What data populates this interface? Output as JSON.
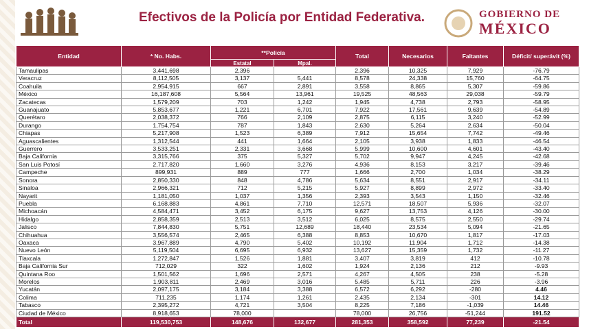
{
  "header": {
    "title": "Efectivos de la Policía por Entidad Federativa.",
    "logo_line1": "GOBIERNO DE",
    "logo_line2": "MÉXICO"
  },
  "table": {
    "columns": [
      "Entidad",
      "* No. Habs.",
      "**Policía",
      "Total",
      "Necesarios",
      "Faltantes",
      "Déficit/ superávit (%)"
    ],
    "subcolumns": [
      "Estatal",
      "Mpal."
    ],
    "rows": [
      [
        "Tamaulipas",
        "3,441,698",
        "2,396",
        null,
        "2,396",
        "10,325",
        "7,929",
        "-76.79"
      ],
      [
        "Veracruz",
        "8,112,505",
        "3,137",
        "5,441",
        "8,578",
        "24,338",
        "15,760",
        "-64.75"
      ],
      [
        "Coahuila",
        "2,954,915",
        "667",
        "2,891",
        "3,558",
        "8,865",
        "5,307",
        "-59.86"
      ],
      [
        "México",
        "16,187,608",
        "5,564",
        "13,961",
        "19,525",
        "48,563",
        "29,038",
        "-59.79"
      ],
      [
        "Zacatecas",
        "1,579,209",
        "703",
        "1,242",
        "1,945",
        "4,738",
        "2,793",
        "-58.95"
      ],
      [
        "Guanajuato",
        "5,853,677",
        "1,221",
        "6,701",
        "7,922",
        "17,561",
        "9,639",
        "-54.89"
      ],
      [
        "Querétaro",
        "2,038,372",
        "766",
        "2,109",
        "2,875",
        "6,115",
        "3,240",
        "-52.99"
      ],
      [
        "Durango",
        "1,754,754",
        "787",
        "1,843",
        "2,630",
        "5,264",
        "2,634",
        "-50.04"
      ],
      [
        "Chiapas",
        "5,217,908",
        "1,523",
        "6,389",
        "7,912",
        "15,654",
        "7,742",
        "-49.46"
      ],
      [
        "Aguascalientes",
        "1,312,544",
        "441",
        "1,664",
        "2,105",
        "3,938",
        "1,833",
        "-46.54"
      ],
      [
        "Guerrero",
        "3,533,251",
        "2,331",
        "3,668",
        "5,999",
        "10,600",
        "4,601",
        "-43.40"
      ],
      [
        "Baja California",
        "3,315,766",
        "375",
        "5,327",
        "5,702",
        "9,947",
        "4,245",
        "-42.68"
      ],
      [
        "San Luis Potosí",
        "2,717,820",
        "1,660",
        "3,276",
        "4,936",
        "8,153",
        "3,217",
        "-39.46"
      ],
      [
        "Campeche",
        "899,931",
        "889",
        "777",
        "1,666",
        "2,700",
        "1,034",
        "-38.29"
      ],
      [
        "Sonora",
        "2,850,330",
        "848",
        "4,786",
        "5,634",
        "8,551",
        "2,917",
        "-34.11"
      ],
      [
        "Sinaloa",
        "2,966,321",
        "712",
        "5,215",
        "5,927",
        "8,899",
        "2,972",
        "-33.40"
      ],
      [
        "Nayarit",
        "1,181,050",
        "1,037",
        "1,356",
        "2,393",
        "3,543",
        "1,150",
        "-32.46"
      ],
      [
        "Puebla",
        "6,168,883",
        "4,861",
        "7,710",
        "12,571",
        "18,507",
        "5,936",
        "-32.07"
      ],
      [
        "Michoacán",
        "4,584,471",
        "3,452",
        "6,175",
        "9,627",
        "13,753",
        "4,126",
        "-30.00"
      ],
      [
        "Hidalgo",
        "2,858,359",
        "2,513",
        "3,512",
        "6,025",
        "8,575",
        "2,550",
        "-29.74"
      ],
      [
        "Jalisco",
        "7,844,830",
        "5,751",
        "12,689",
        "18,440",
        "23,534",
        "5,094",
        "-21.65"
      ],
      [
        "Chihuahua",
        "3,556,574",
        "2,465",
        "6,388",
        "8,853",
        "10,670",
        "1,817",
        "-17.03"
      ],
      [
        "Oaxaca",
        "3,967,889",
        "4,790",
        "5,402",
        "10,192",
        "11,904",
        "1,712",
        "-14.38"
      ],
      [
        "Nuevo León",
        "5,119,504",
        "6,695",
        "6,932",
        "13,627",
        "15,359",
        "1,732",
        "-11.27"
      ],
      [
        "Tlaxcala",
        "1,272,847",
        "1,526",
        "1,881",
        "3,407",
        "3,819",
        "412",
        "-10.78"
      ],
      [
        "Baja California Sur",
        "712,029",
        "322",
        "1,602",
        "1,924",
        "2,136",
        "212",
        "-9.93"
      ],
      [
        "Quintana Roo",
        "1,501,562",
        "1,696",
        "2,571",
        "4,267",
        "4,505",
        "238",
        "-5.28"
      ],
      [
        "Morelos",
        "1,903,811",
        "2,469",
        "3,016",
        "5,485",
        "5,711",
        "226",
        "-3.96"
      ],
      [
        "Yucatán",
        "2,097,175",
        "3,184",
        "3,388",
        "6,572",
        "6,292",
        "-280",
        "4.46"
      ],
      [
        "Colima",
        "711,235",
        "1,174",
        "1,261",
        "2,435",
        "2,134",
        "-301",
        "14.12"
      ],
      [
        "Tabasco",
        "2,395,272",
        "4,721",
        "3,504",
        "8,225",
        "7,186",
        "-1,039",
        "14.46"
      ],
      [
        "Ciudad de México",
        "8,918,653",
        "78,000",
        null,
        "78,000",
        "26,756",
        "-51,244",
        "191.52"
      ]
    ],
    "total": [
      "Total",
      "119,530,753",
      "148,676",
      "132,677",
      "281,353",
      "358,592",
      "77,239",
      "-21.54"
    ]
  }
}
